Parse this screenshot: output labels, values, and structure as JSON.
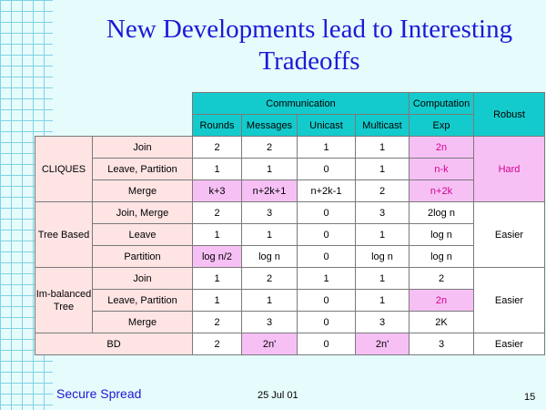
{
  "title_line1": "New Developments lead to Interesting",
  "title_line2": "Tradeoffs",
  "header": {
    "communication": "Communication",
    "computation": "Computation",
    "robust": "Robust",
    "rounds": "Rounds",
    "messages": "Messages",
    "unicast": "Unicast",
    "multicast": "Multicast",
    "exp": "Exp"
  },
  "groups": {
    "cliques": {
      "name": "CLIQUES",
      "robust": "Hard"
    },
    "tree": {
      "name": "Tree Based",
      "robust": "Easier"
    },
    "imbalanced": {
      "name": "Im-balanced Tree",
      "robust": "Easier"
    }
  },
  "rows": [
    {
      "op": "Join",
      "rounds": "2",
      "messages": "2",
      "unicast": "1",
      "multicast": "1",
      "exp": "2n"
    },
    {
      "op": "Leave, Partition",
      "rounds": "1",
      "messages": "1",
      "unicast": "0",
      "multicast": "1",
      "exp": "n-k"
    },
    {
      "op": "Merge",
      "rounds": "k+3",
      "messages": "n+2k+1",
      "unicast": "n+2k-1",
      "multicast": "2",
      "exp": "n+2k"
    },
    {
      "op": "Join, Merge",
      "rounds": "2",
      "messages": "3",
      "unicast": "0",
      "multicast": "3",
      "exp": "2log n"
    },
    {
      "op": "Leave",
      "rounds": "1",
      "messages": "1",
      "unicast": "0",
      "multicast": "1",
      "exp": "log n"
    },
    {
      "op": "Partition",
      "rounds": "log n/2",
      "messages": "log n",
      "unicast": "0",
      "multicast": "log n",
      "exp": "log n"
    },
    {
      "op": "Join",
      "rounds": "1",
      "messages": "2",
      "unicast": "1",
      "multicast": "1",
      "exp": "2"
    },
    {
      "op": "Leave, Partition",
      "rounds": "1",
      "messages": "1",
      "unicast": "0",
      "multicast": "1",
      "exp": "2n"
    },
    {
      "op": "Merge",
      "rounds": "2",
      "messages": "3",
      "unicast": "0",
      "multicast": "3",
      "exp": "2K"
    }
  ],
  "bd": {
    "label": "BD",
    "rounds": "2",
    "messages": "2n'",
    "unicast": "0",
    "multicast": "2n'",
    "exp": "3",
    "robust": "Easier"
  },
  "footer": {
    "left": "Secure Spread",
    "date": "25 Jul 01",
    "page": "15"
  },
  "colors": {
    "teal": "#13cbcc",
    "pink": "#ffe4e4",
    "magenta": "#f7c0f5",
    "title": "#1a1ad6"
  }
}
